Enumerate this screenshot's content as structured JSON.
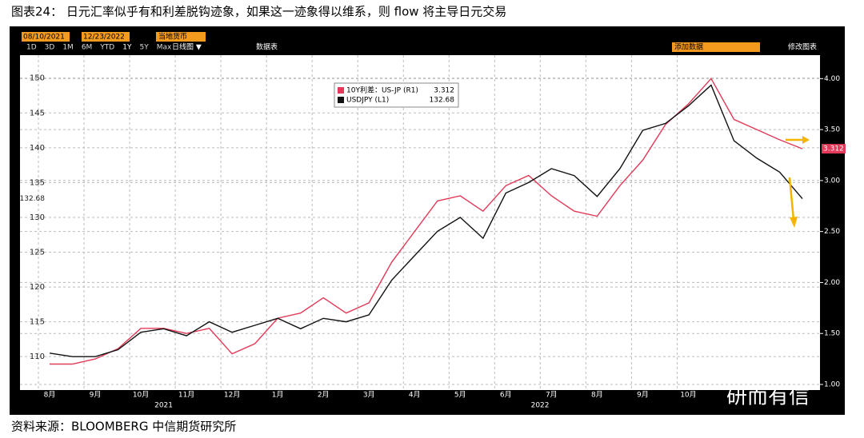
{
  "header": {
    "title": "图表24： 日元汇率似乎有和利差脱钩迹象，如果这一迹象得以维系，则 flow 将主导日元交易"
  },
  "toolbar": {
    "start": "08/10/2021",
    "end": "12/23/2022",
    "currency": "当地货币",
    "ranges": [
      "1D",
      "3D",
      "1M",
      "6M",
      "YTD",
      "1Y",
      "5Y",
      "Max"
    ],
    "chart_type": "日线图 ▼",
    "table": "数据表",
    "add": "添加数据",
    "edit": "修改图表"
  },
  "chart_data": {
    "type": "line",
    "categories": [
      "8月",
      null,
      "9月",
      null,
      "10月",
      null,
      "11月",
      null,
      "12月",
      null,
      "1月",
      null,
      "2月",
      null,
      "3月",
      null,
      "4月",
      null,
      "5月",
      null,
      "6月",
      null,
      "7月",
      null,
      "8月",
      null,
      "9月",
      null,
      "10月",
      null,
      null,
      null,
      null,
      null
    ],
    "years": [
      "2021",
      "2022"
    ],
    "series": [
      {
        "name": "10Y利差：US-JP (R1)",
        "color": "#e23a58",
        "axis": "y2",
        "values": [
          1.2,
          1.2,
          1.25,
          1.35,
          1.55,
          1.55,
          1.5,
          1.55,
          1.3,
          1.4,
          1.65,
          1.7,
          1.85,
          1.7,
          1.8,
          2.2,
          2.5,
          2.8,
          2.85,
          2.7,
          2.95,
          3.05,
          2.85,
          2.7,
          2.65,
          2.95,
          3.2,
          3.55,
          3.75,
          4.0,
          3.6,
          3.5,
          3.4,
          3.312
        ]
      },
      {
        "name": "USDJPY (L1)",
        "color": "#111111",
        "values": [
          110.5,
          110,
          110,
          111,
          113.5,
          114,
          113,
          115,
          113.5,
          114.5,
          115.5,
          114,
          115.5,
          115,
          116,
          121,
          124.5,
          128,
          130,
          127,
          133.5,
          135,
          137,
          136,
          133,
          137,
          142.5,
          143.5,
          146,
          149,
          141,
          138.5,
          136.5,
          132.68
        ]
      }
    ],
    "ylim": [
      105.2,
      153.3
    ],
    "yticks": [
      110,
      115,
      120,
      125,
      130,
      135,
      140,
      145,
      150
    ],
    "y2lim": [
      0.945,
      4.23
    ],
    "y2ticks": [
      {
        "value": 1,
        "label": "1.00"
      },
      {
        "value": 1.5,
        "label": "1.50"
      },
      {
        "value": 2,
        "label": "2.00"
      },
      {
        "value": 2.5,
        "label": "2.50"
      },
      {
        "value": 3,
        "label": "3.00"
      },
      {
        "value": 3.5,
        "label": "3.50"
      },
      {
        "value": 4,
        "label": "4.00"
      }
    ],
    "grid": true
  },
  "watermark": "研而有信",
  "source": "资料来源：BLOOMBERG   中信期货研究所"
}
